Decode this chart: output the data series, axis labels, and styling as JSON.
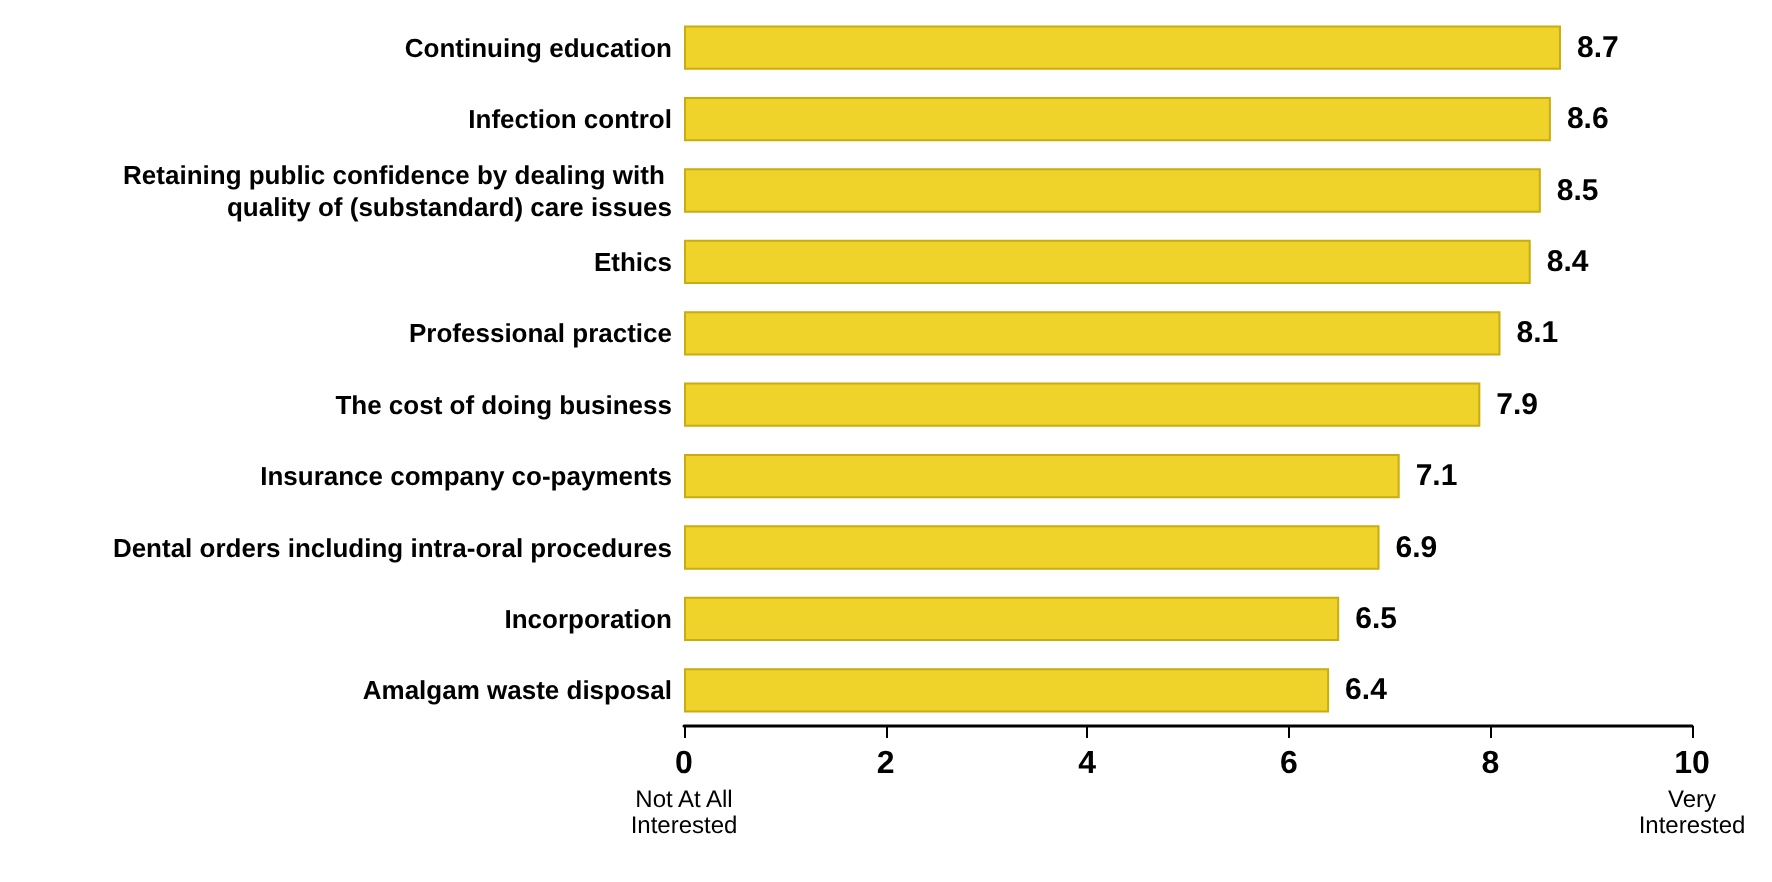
{
  "chart_data": {
    "type": "bar",
    "orientation": "horizontal",
    "categories": [
      "Continuing education",
      "Infection control",
      "Retaining public confidence by dealing with quality of (substandard) care issues",
      "Ethics",
      "Professional practice",
      "The cost of doing business",
      "Insurance company co-payments",
      "Dental orders including intra-oral procedures",
      "Incorporation",
      "Amalgam waste disposal"
    ],
    "values": [
      8.7,
      8.6,
      8.5,
      8.4,
      8.1,
      7.9,
      7.1,
      6.9,
      6.5,
      6.4
    ],
    "color": "#efd22a",
    "xlim": [
      0,
      10
    ],
    "xticks": [
      {
        "value": 0,
        "label": "0\nNot At All\nInterested"
      },
      2,
      4,
      6,
      8,
      {
        "value": 10,
        "label": "10\nVery\nInterested"
      }
    ],
    "data_labels": true,
    "grid": false
  }
}
